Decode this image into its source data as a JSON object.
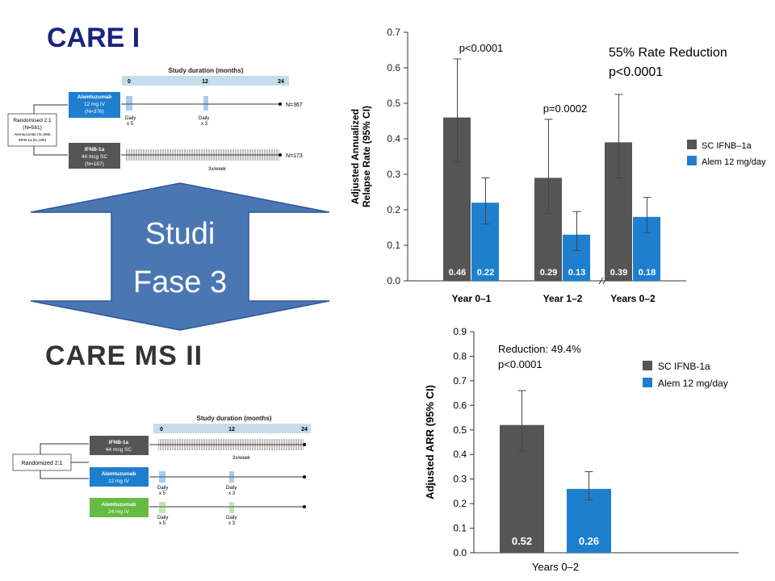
{
  "titles": {
    "care1": "CARE I",
    "care2": "CARE MS II"
  },
  "arrow": {
    "line1": "Studi",
    "line2": "Fase 3",
    "color": "#4a77b4"
  },
  "colors": {
    "sc_ifnb": "#555555",
    "alem": "#1f7fcf",
    "title_blue": "#1a237e",
    "timeline_bar": "#c6dceb",
    "alem12_box": "#1f7fcf",
    "alem24_box": "#66bb44",
    "ifnb_box": "#555555"
  },
  "diagram1": {
    "header": "Study duration (months)",
    "ticks": [
      "0",
      "12",
      "24"
    ],
    "randomised": [
      "Randomised 2:1",
      "(N=581)",
      "Alemtuzumab (N=386)",
      "INFB-1a (N=195)"
    ],
    "arm1": {
      "name": "Alemtuzumab",
      "dose": "12 mg IV",
      "n": "(N=376)",
      "end": "N=367",
      "daily1": "Daily",
      "x1": "x 5",
      "daily2": "Daily",
      "x2": "x 3"
    },
    "arm2": {
      "name": "IFNB-1a",
      "dose": "44 mcg SC",
      "n": "(N=187)",
      "end": "N=173",
      "freq": "3x/week"
    }
  },
  "diagram2": {
    "header": "Study duration (months)",
    "ticks": [
      "0",
      "12",
      "24"
    ],
    "randomised": "Randomized 2:1",
    "arm1": {
      "name": "IFNB-1a",
      "dose": "44 mcg SC",
      "freq": "3x/week"
    },
    "arm2": {
      "name": "Alemtuzumab",
      "dose": "12 mg IV",
      "daily1": "Daily",
      "x1": "x 5",
      "daily2": "Daily",
      "x2": "x 3"
    },
    "arm3": {
      "name": "Alemtuzumab",
      "dose": "24 mg IV",
      "daily1": "Daily",
      "x1": "x 5",
      "daily2": "Daily",
      "x2": "x 3"
    }
  },
  "chart_data": [
    {
      "type": "bar",
      "ylabel": "Adjusted Annualized Relapse Rate (95% CI)",
      "ylabel_lines": [
        "Adjusted Annualized",
        "Relapse Rate (95% CI)"
      ],
      "ylim": [
        0,
        0.7
      ],
      "yticks": [
        "0.0",
        "0.1",
        "0.2",
        "0.3",
        "0.4",
        "0.5",
        "0.6",
        "0.7"
      ],
      "categories": [
        "Year 0–1",
        "Year 1–2",
        "Years 0–2"
      ],
      "series": [
        {
          "name": "SC IFNB–1a",
          "values": [
            0.46,
            0.29,
            0.39
          ],
          "labels": [
            "0.46",
            "0.29",
            "0.39"
          ],
          "ci_low": [
            0.335,
            0.19,
            0.29
          ],
          "ci_high": [
            0.625,
            0.455,
            0.525
          ]
        },
        {
          "name": "Alem 12 mg/day",
          "values": [
            0.22,
            0.13,
            0.18
          ],
          "labels": [
            "0.22",
            "0.13",
            "0.18"
          ],
          "ci_low": [
            0.16,
            0.085,
            0.135
          ],
          "ci_high": [
            0.29,
            0.195,
            0.235
          ]
        }
      ],
      "annotations": [
        "p<0.0001",
        "p=0.0002"
      ],
      "rate_reduction": [
        "55% Rate Reduction",
        "p<0.0001"
      ],
      "grid": false,
      "legend": "right"
    },
    {
      "type": "bar",
      "ylabel": "Adjusted ARR (95% CI)",
      "ylim": [
        0,
        0.9
      ],
      "yticks": [
        "0.0",
        "0.1",
        "0.2",
        "0.3",
        "0.4",
        "0.5",
        "0.6",
        "0.7",
        "0.8",
        "0.9"
      ],
      "categories": [
        "Years 0–2"
      ],
      "series": [
        {
          "name": "SC IFNB-1a",
          "values": [
            0.52
          ],
          "labels": [
            "0.52"
          ],
          "ci_low": [
            0.415
          ],
          "ci_high": [
            0.66
          ]
        },
        {
          "name": "Alem 12 mg/day",
          "values": [
            0.26
          ],
          "labels": [
            "0.26"
          ],
          "ci_low": [
            0.215
          ],
          "ci_high": [
            0.33
          ]
        }
      ],
      "annotations": [
        "Reduction: 49.4%",
        "p<0.0001"
      ],
      "grid": false,
      "legend": "top-right"
    }
  ]
}
